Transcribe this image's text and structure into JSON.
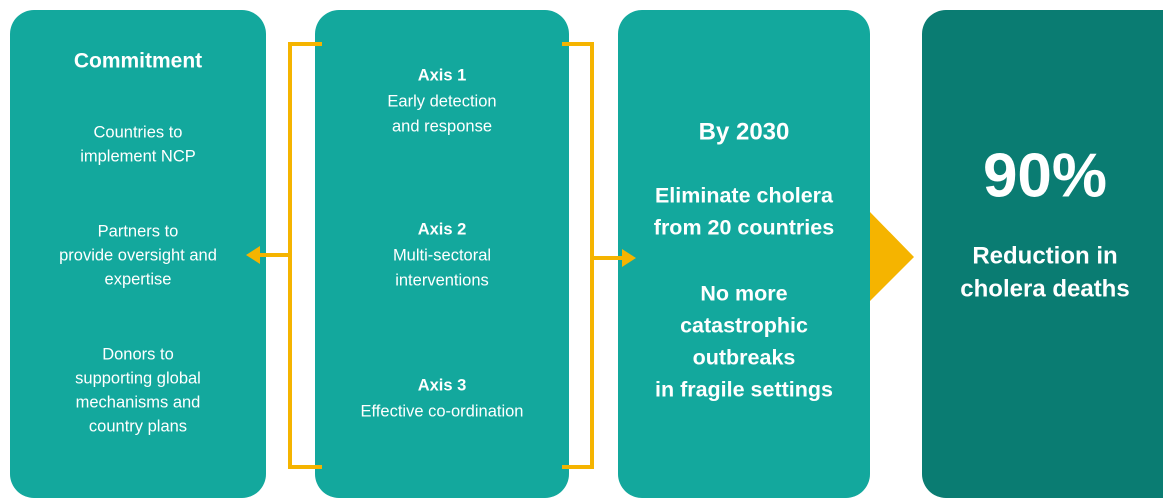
{
  "commitment": {
    "title": "Commitment",
    "items": [
      [
        "Countries to",
        "implement NCP"
      ],
      [
        "Partners to",
        "provide oversight and",
        "expertise"
      ],
      [
        "Donors to",
        "supporting global",
        "mechanisms and",
        "country plans"
      ]
    ]
  },
  "axes": [
    {
      "title": "Axis 1",
      "lines": [
        "Early detection",
        "and response"
      ]
    },
    {
      "title": "Axis 2",
      "lines": [
        "Multi-sectoral",
        "interventions"
      ]
    },
    {
      "title": "Axis 3",
      "lines": [
        "Effective co-ordination"
      ]
    }
  ],
  "goals": {
    "title": "By 2030",
    "items": [
      [
        "Eliminate cholera",
        "from 20 countries"
      ],
      [
        "No more",
        "catastrophic",
        "outbreaks",
        "in fragile settings"
      ]
    ]
  },
  "impact": {
    "value": "90%",
    "lines": [
      "Reduction in",
      "cholera deaths"
    ]
  }
}
